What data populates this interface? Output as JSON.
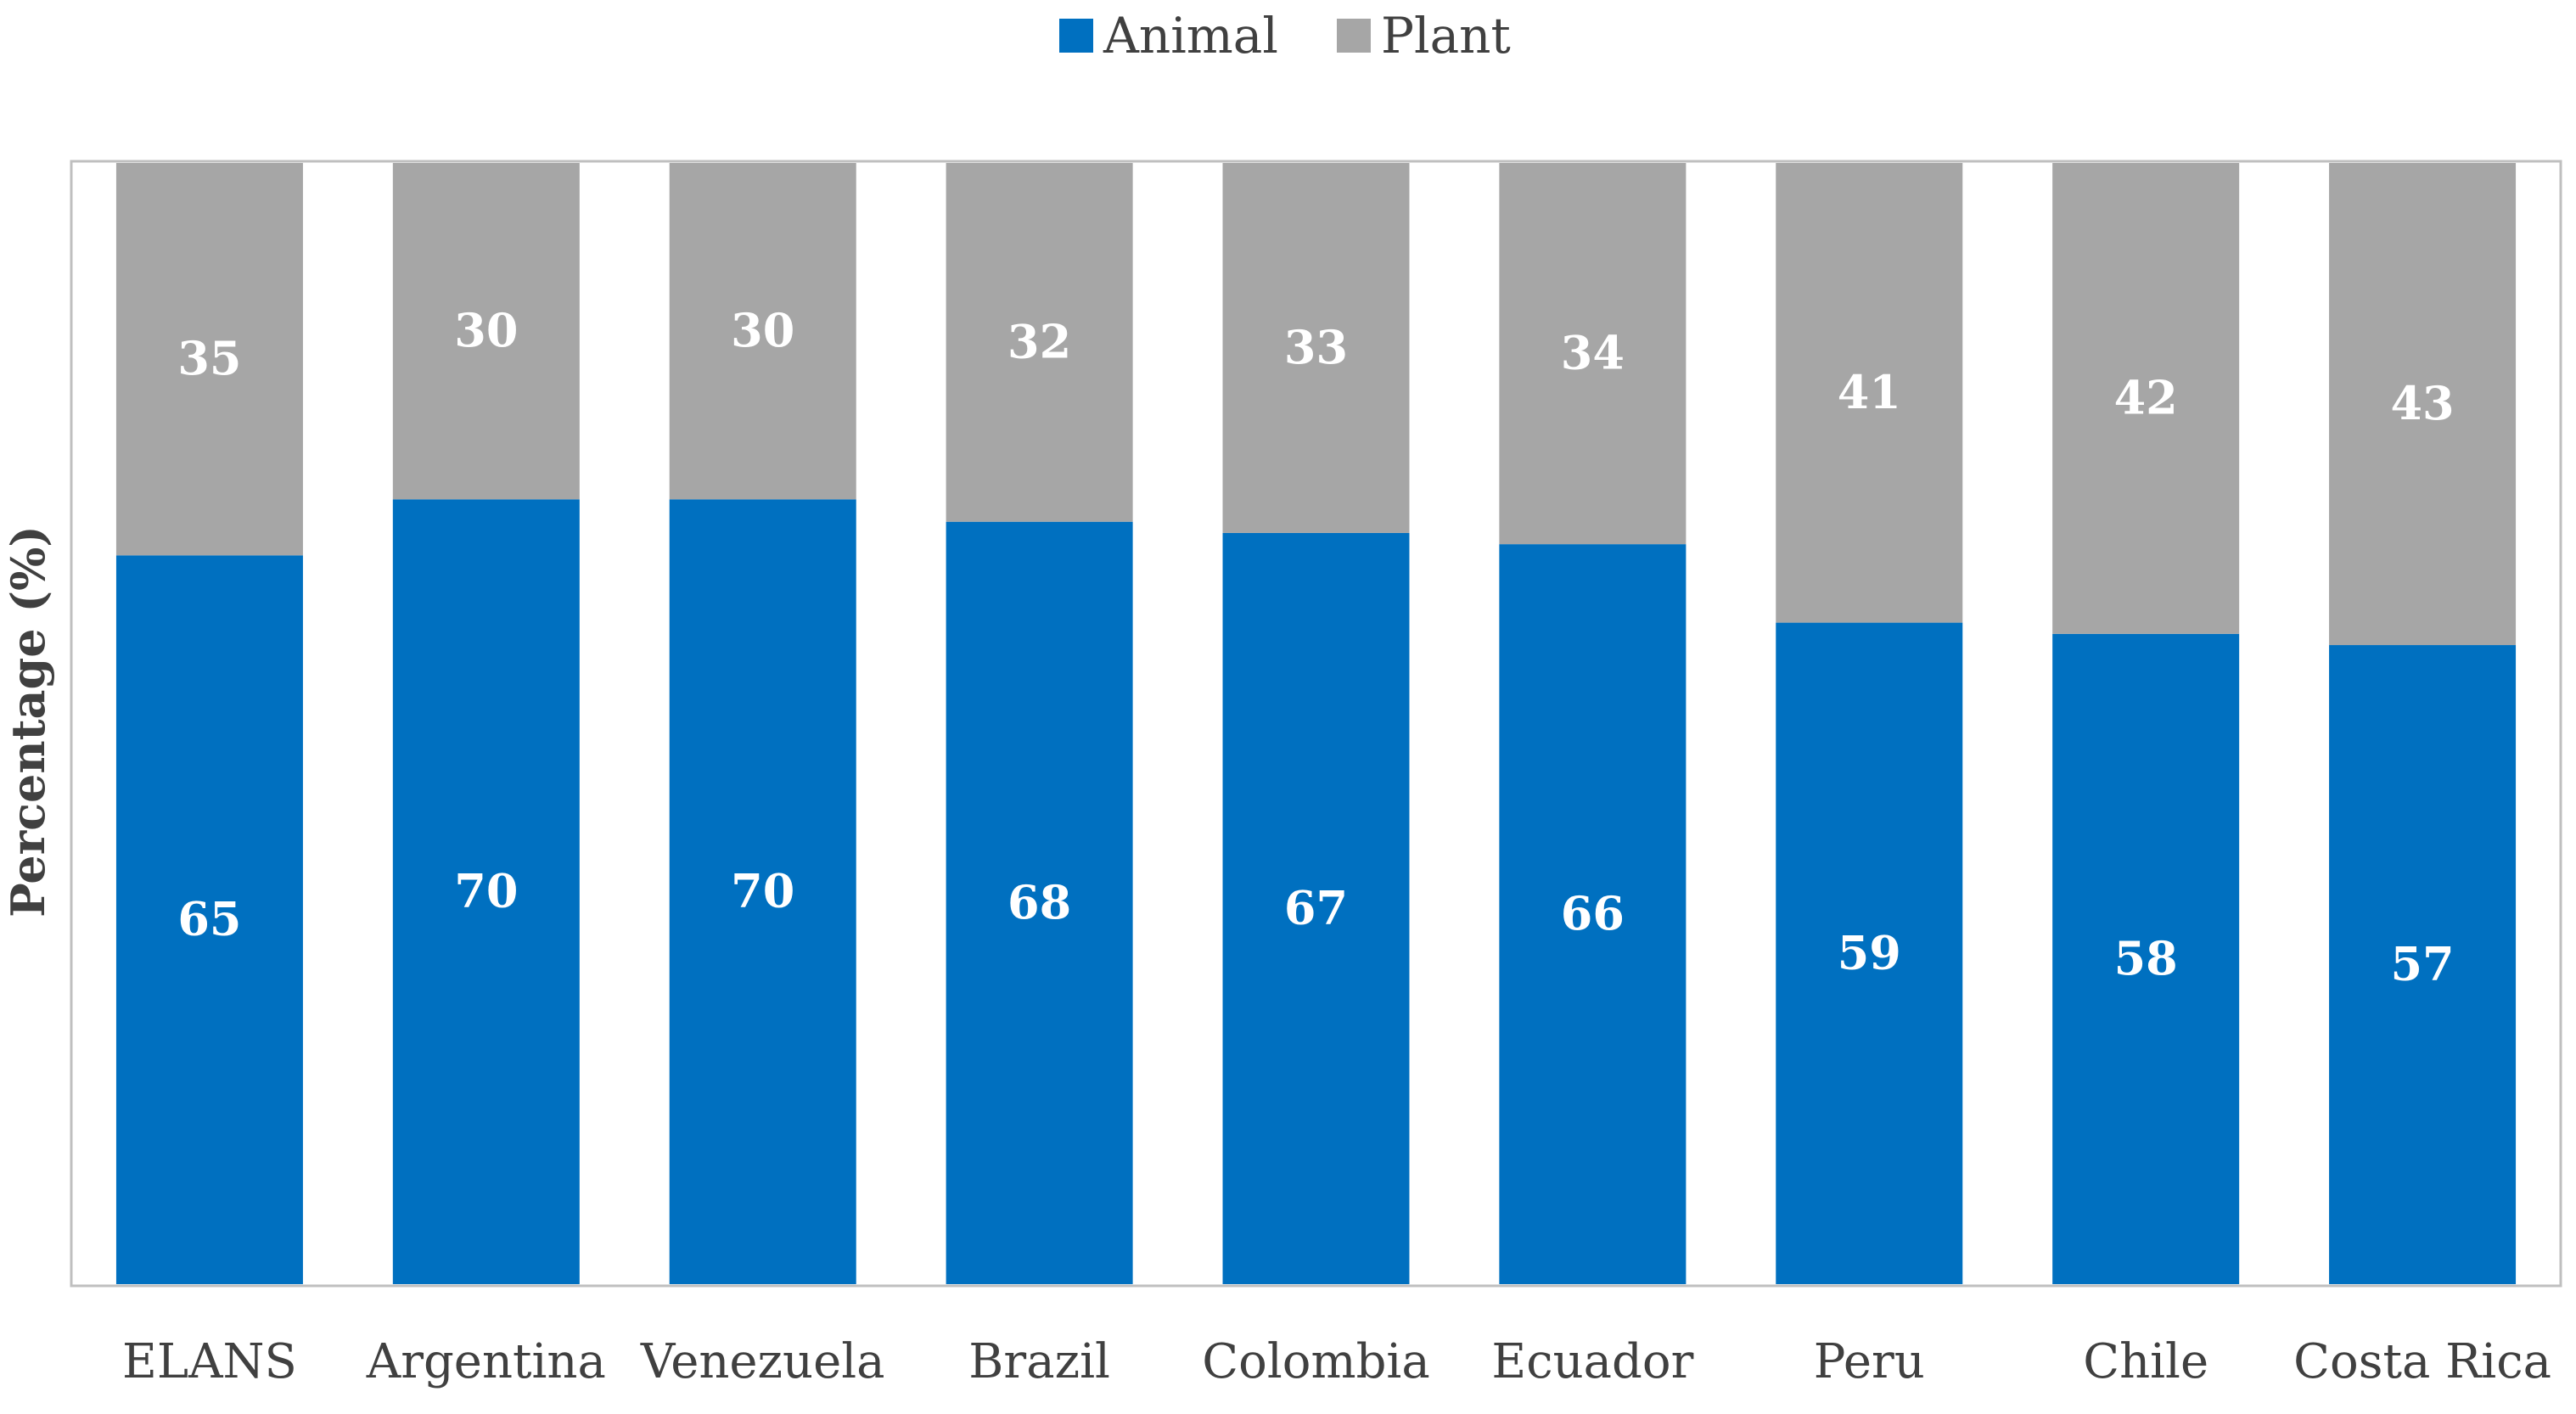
{
  "chart_data": {
    "type": "bar",
    "stacked": true,
    "title": "",
    "xlabel": "",
    "ylabel": "Percentage (%)",
    "ylim": [
      0,
      100
    ],
    "grid": false,
    "legend_position": "top-center",
    "categories": [
      "ELANS",
      "Argentina",
      "Venezuela",
      "Brazil",
      "Colombia",
      "Ecuador",
      "Peru",
      "Chile",
      "Costa Rica"
    ],
    "series": [
      {
        "name": "Animal",
        "color": "#0070C0",
        "values": [
          65,
          70,
          70,
          68,
          67,
          66,
          59,
          58,
          57
        ]
      },
      {
        "name": "Plant",
        "color": "#A6A6A6",
        "values": [
          35,
          30,
          30,
          32,
          33,
          34,
          41,
          42,
          43
        ]
      }
    ]
  }
}
